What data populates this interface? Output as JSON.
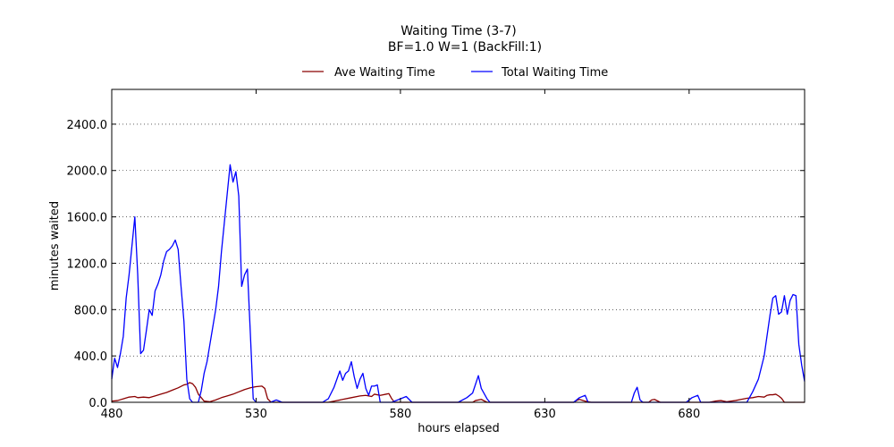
{
  "chart_data": {
    "type": "line",
    "title": "Waiting Time (3-7)",
    "subtitle": "BF=1.0   W=1   (BackFill:1)",
    "xlabel": "hours elapsed",
    "ylabel": "minutes waited",
    "xlim": [
      480,
      720
    ],
    "ylim": [
      0,
      2700
    ],
    "xticks": [
      480,
      530,
      580,
      630,
      680
    ],
    "xtick_labels": [
      "480",
      "530",
      "580",
      "630",
      "680"
    ],
    "yticks": [
      0,
      400,
      800,
      1200,
      1600,
      2000,
      2400
    ],
    "ytick_labels": [
      "0.0",
      "400.0",
      "800.0",
      "1200.0",
      "1600.0",
      "2000.0",
      "2400.0"
    ],
    "grid": "y-dotted",
    "legend_position": "top-center",
    "colors": {
      "ave": "#8b0000",
      "total": "#0000ff"
    },
    "series": [
      {
        "name": "Ave Waiting Time",
        "key": "ave",
        "points": [
          [
            480,
            10
          ],
          [
            482,
            15
          ],
          [
            484,
            30
          ],
          [
            486,
            45
          ],
          [
            488,
            50
          ],
          [
            489,
            40
          ],
          [
            491,
            45
          ],
          [
            493,
            40
          ],
          [
            495,
            55
          ],
          [
            497,
            70
          ],
          [
            499,
            85
          ],
          [
            501,
            105
          ],
          [
            503,
            125
          ],
          [
            505,
            150
          ],
          [
            506,
            155
          ],
          [
            507,
            170
          ],
          [
            508,
            160
          ],
          [
            509,
            130
          ],
          [
            510,
            70
          ],
          [
            512,
            10
          ],
          [
            514,
            5
          ],
          [
            516,
            20
          ],
          [
            518,
            40
          ],
          [
            520,
            55
          ],
          [
            522,
            70
          ],
          [
            524,
            90
          ],
          [
            526,
            110
          ],
          [
            528,
            125
          ],
          [
            530,
            135
          ],
          [
            532,
            140
          ],
          [
            533,
            120
          ],
          [
            534,
            30
          ],
          [
            535,
            5
          ],
          [
            536,
            0
          ],
          [
            555,
            0
          ],
          [
            557,
            10
          ],
          [
            560,
            25
          ],
          [
            563,
            40
          ],
          [
            566,
            55
          ],
          [
            568,
            60
          ],
          [
            570,
            50
          ],
          [
            571,
            70
          ],
          [
            573,
            60
          ],
          [
            575,
            70
          ],
          [
            576,
            75
          ],
          [
            577,
            30
          ],
          [
            578,
            0
          ],
          [
            605,
            0
          ],
          [
            606,
            15
          ],
          [
            608,
            25
          ],
          [
            610,
            0
          ],
          [
            640,
            0
          ],
          [
            641,
            15
          ],
          [
            642,
            25
          ],
          [
            644,
            10
          ],
          [
            646,
            0
          ],
          [
            666,
            0
          ],
          [
            667,
            20
          ],
          [
            668,
            25
          ],
          [
            670,
            0
          ],
          [
            687,
            0
          ],
          [
            689,
            10
          ],
          [
            691,
            15
          ],
          [
            693,
            5
          ],
          [
            696,
            15
          ],
          [
            698,
            25
          ],
          [
            700,
            35
          ],
          [
            702,
            40
          ],
          [
            704,
            50
          ],
          [
            706,
            45
          ],
          [
            707,
            60
          ],
          [
            708,
            65
          ],
          [
            709,
            65
          ],
          [
            710,
            70
          ],
          [
            711,
            55
          ],
          [
            712,
            35
          ],
          [
            713,
            0
          ],
          [
            720,
            0
          ]
        ]
      },
      {
        "name": "Total Waiting Time",
        "key": "total",
        "points": [
          [
            480,
            200
          ],
          [
            481,
            380
          ],
          [
            482,
            300
          ],
          [
            483,
            420
          ],
          [
            484,
            570
          ],
          [
            485,
            900
          ],
          [
            486,
            1100
          ],
          [
            487,
            1350
          ],
          [
            488,
            1600
          ],
          [
            489,
            1100
          ],
          [
            490,
            420
          ],
          [
            491,
            450
          ],
          [
            492,
            620
          ],
          [
            493,
            800
          ],
          [
            494,
            750
          ],
          [
            495,
            960
          ],
          [
            496,
            1020
          ],
          [
            497,
            1100
          ],
          [
            498,
            1220
          ],
          [
            499,
            1300
          ],
          [
            500,
            1320
          ],
          [
            501,
            1350
          ],
          [
            502,
            1400
          ],
          [
            503,
            1320
          ],
          [
            504,
            1000
          ],
          [
            505,
            700
          ],
          [
            506,
            200
          ],
          [
            507,
            30
          ],
          [
            508,
            0
          ],
          [
            510,
            0
          ],
          [
            511,
            100
          ],
          [
            512,
            250
          ],
          [
            513,
            350
          ],
          [
            514,
            500
          ],
          [
            515,
            650
          ],
          [
            516,
            800
          ],
          [
            517,
            1000
          ],
          [
            518,
            1300
          ],
          [
            519,
            1550
          ],
          [
            520,
            1800
          ],
          [
            521,
            2050
          ],
          [
            522,
            1900
          ],
          [
            523,
            1990
          ],
          [
            524,
            1780
          ],
          [
            525,
            1000
          ],
          [
            526,
            1100
          ],
          [
            527,
            1150
          ],
          [
            528,
            600
          ],
          [
            529,
            30
          ],
          [
            530,
            0
          ],
          [
            535,
            0
          ],
          [
            537,
            20
          ],
          [
            539,
            0
          ],
          [
            553,
            0
          ],
          [
            555,
            30
          ],
          [
            557,
            130
          ],
          [
            559,
            270
          ],
          [
            560,
            190
          ],
          [
            561,
            250
          ],
          [
            562,
            270
          ],
          [
            563,
            350
          ],
          [
            564,
            220
          ],
          [
            565,
            120
          ],
          [
            566,
            200
          ],
          [
            567,
            250
          ],
          [
            568,
            120
          ],
          [
            569,
            60
          ],
          [
            570,
            140
          ],
          [
            571,
            140
          ],
          [
            572,
            150
          ],
          [
            573,
            0
          ],
          [
            577,
            0
          ],
          [
            580,
            30
          ],
          [
            582,
            50
          ],
          [
            584,
            0
          ],
          [
            600,
            0
          ],
          [
            603,
            40
          ],
          [
            605,
            80
          ],
          [
            607,
            230
          ],
          [
            608,
            120
          ],
          [
            610,
            30
          ],
          [
            611,
            0
          ],
          [
            640,
            0
          ],
          [
            642,
            40
          ],
          [
            644,
            60
          ],
          [
            645,
            0
          ],
          [
            660,
            0
          ],
          [
            661,
            80
          ],
          [
            662,
            130
          ],
          [
            663,
            20
          ],
          [
            664,
            0
          ],
          [
            679,
            0
          ],
          [
            681,
            40
          ],
          [
            683,
            60
          ],
          [
            684,
            0
          ],
          [
            700,
            0
          ],
          [
            702,
            90
          ],
          [
            704,
            200
          ],
          [
            706,
            400
          ],
          [
            708,
            750
          ],
          [
            709,
            900
          ],
          [
            710,
            920
          ],
          [
            711,
            760
          ],
          [
            712,
            780
          ],
          [
            713,
            920
          ],
          [
            714,
            760
          ],
          [
            715,
            880
          ],
          [
            716,
            930
          ],
          [
            717,
            920
          ],
          [
            718,
            500
          ],
          [
            719,
            320
          ],
          [
            720,
            180
          ]
        ]
      }
    ]
  }
}
